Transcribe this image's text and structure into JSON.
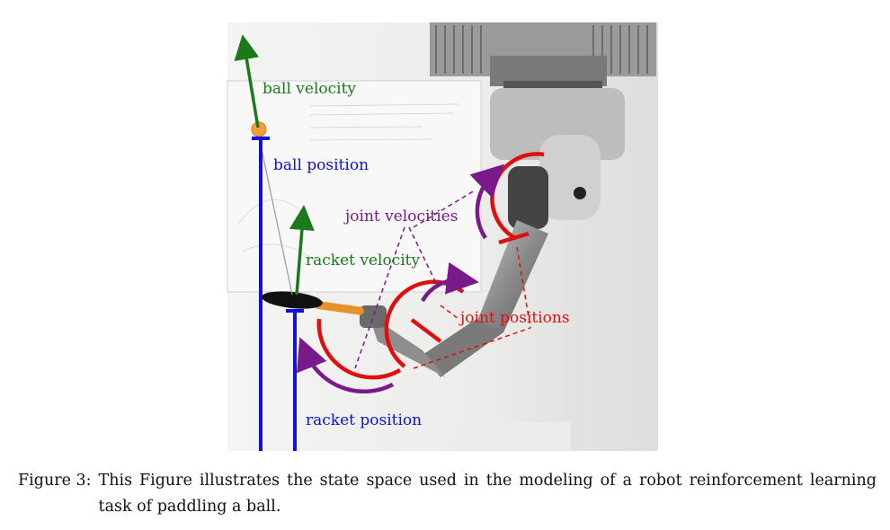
{
  "figure": {
    "labels": {
      "ball_velocity": "ball velocity",
      "ball_position": "ball position",
      "joint_velocities": "joint velocities",
      "racket_velocity": "racket velocity",
      "joint_positions": "joint positions",
      "racket_position": "racket position"
    },
    "colors": {
      "velocity": "#1a7a1a",
      "position": "#1010e0",
      "joint_velocity": "#7a1a8a",
      "joint_position": "#e01010",
      "ball": "#f0a040",
      "racket_handle": "#e8902a"
    }
  },
  "caption": {
    "label": "Figure 3:",
    "text": "This Figure illustrates the state space used in the modeling of a robot reinforcement learning task of paddling a ball."
  }
}
